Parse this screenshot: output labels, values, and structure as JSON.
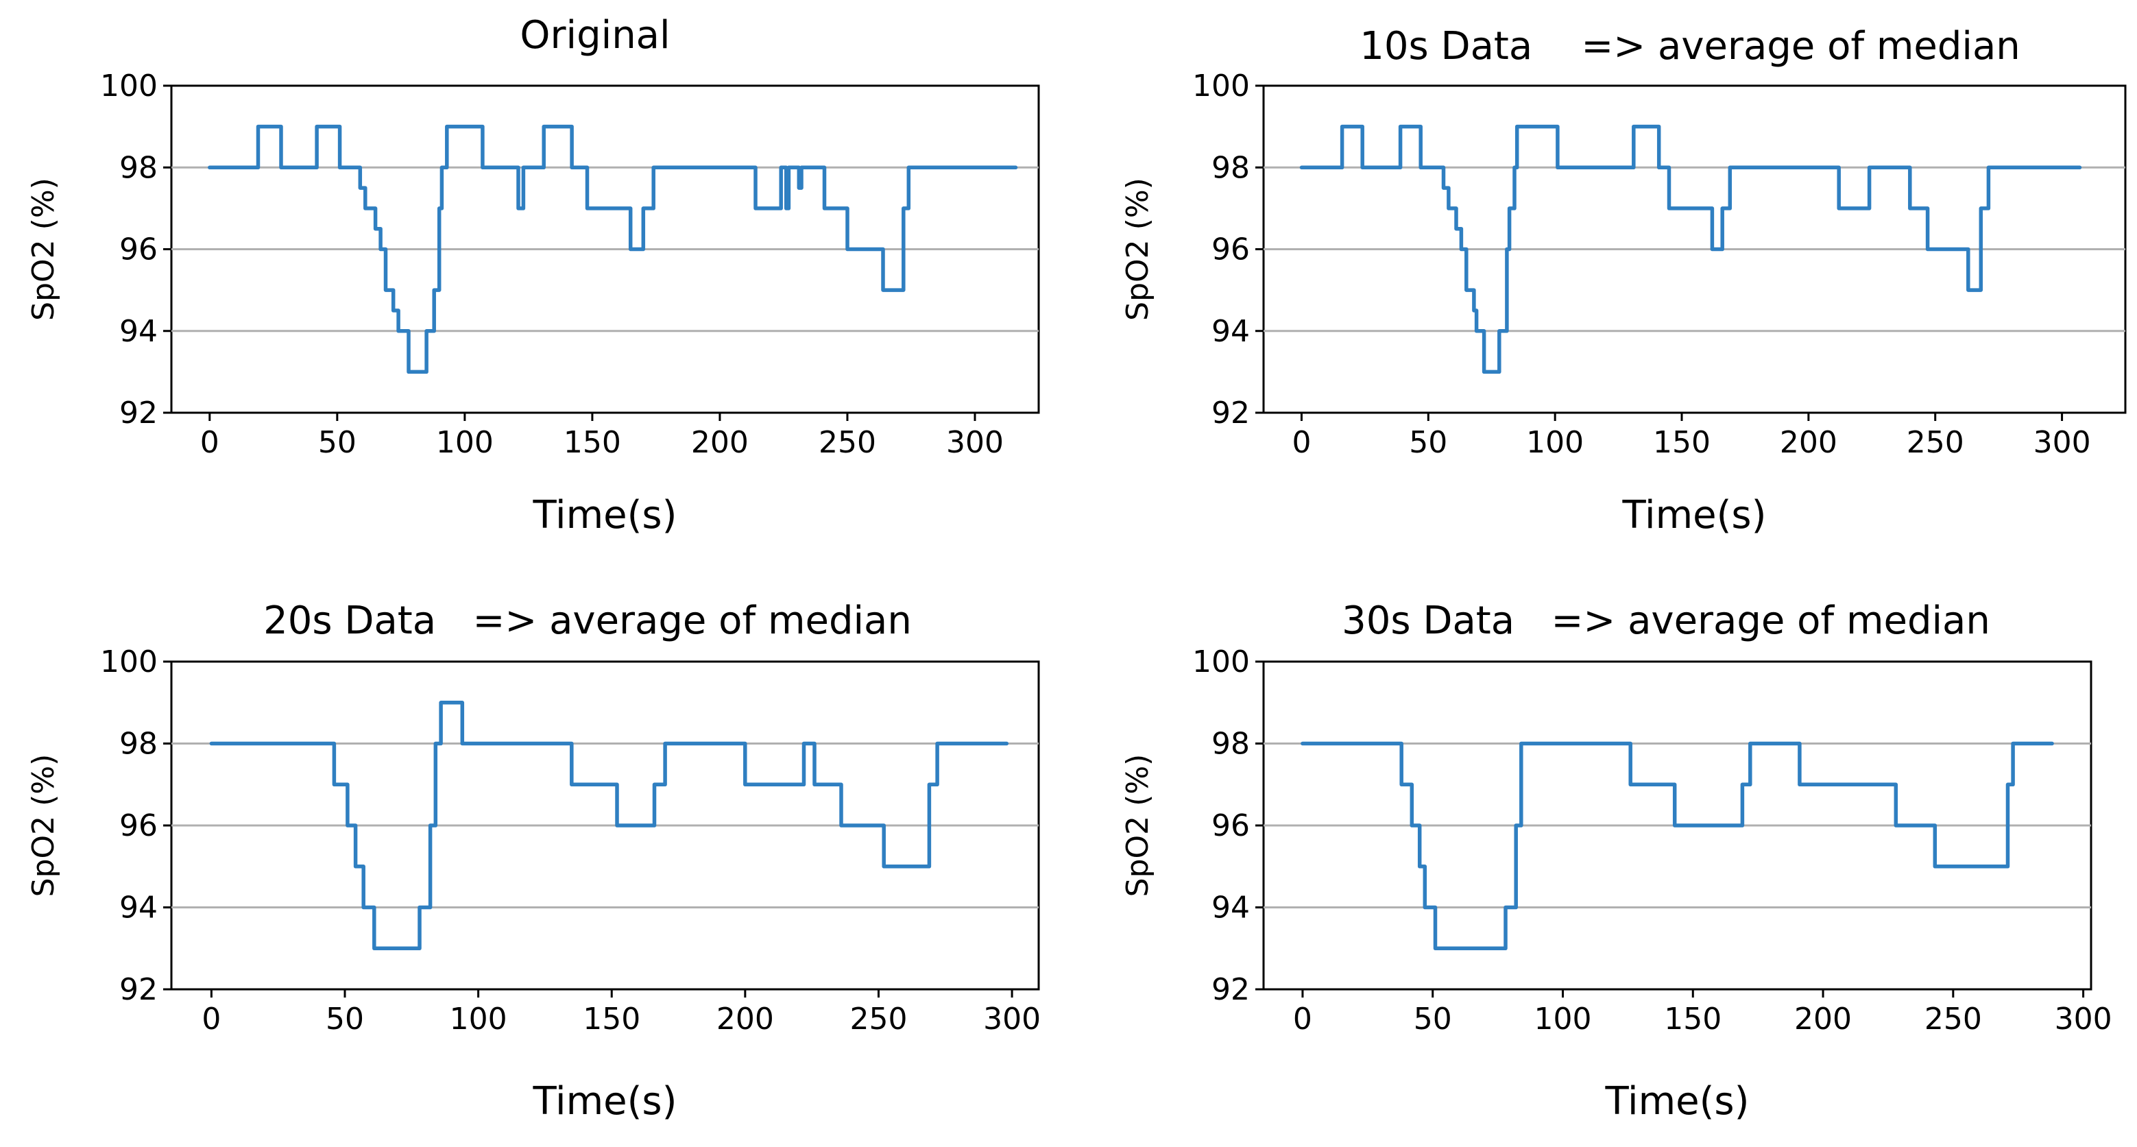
{
  "colors": {
    "series": "#2f7fc1",
    "grid": "#b0b0b0",
    "axis": "#000000",
    "background": "#ffffff"
  },
  "chart_data": [
    {
      "type": "line",
      "title": "Original",
      "xlabel": "Time(s)",
      "ylabel": "SpO2 (%)",
      "xlim": [
        -15,
        325
      ],
      "ylim": [
        92,
        100
      ],
      "xticks": [
        0,
        50,
        100,
        150,
        200,
        250,
        300
      ],
      "yticks": [
        92,
        94,
        96,
        98,
        100
      ],
      "grid": "y",
      "series": [
        {
          "name": "SpO2",
          "steps": [
            [
              0,
              98
            ],
            [
              19,
              99
            ],
            [
              28,
              98
            ],
            [
              42,
              99
            ],
            [
              51,
              98
            ],
            [
              59,
              97.5
            ],
            [
              61,
              97
            ],
            [
              65,
              96.5
            ],
            [
              67,
              96
            ],
            [
              69,
              95
            ],
            [
              72,
              94.5
            ],
            [
              74,
              94
            ],
            [
              78,
              93
            ],
            [
              85,
              94
            ],
            [
              88,
              95
            ],
            [
              90,
              97
            ],
            [
              91,
              98
            ],
            [
              93,
              99
            ],
            [
              107,
              98
            ],
            [
              121,
              97
            ],
            [
              123,
              98
            ],
            [
              131,
              99
            ],
            [
              142,
              98
            ],
            [
              148,
              97
            ],
            [
              165,
              96
            ],
            [
              170,
              97
            ],
            [
              174,
              98
            ],
            [
              214,
              97
            ],
            [
              224,
              98
            ],
            [
              226,
              97
            ],
            [
              227,
              98
            ],
            [
              231,
              97.5
            ],
            [
              232,
              98
            ],
            [
              241,
              97
            ],
            [
              250,
              96
            ],
            [
              264,
              95
            ],
            [
              272,
              97
            ],
            [
              274,
              98
            ],
            [
              316,
              98
            ]
          ]
        }
      ]
    },
    {
      "type": "line",
      "title": "10s Data    => average of median",
      "xlabel": "Time(s)",
      "ylabel": "SpO2 (%)",
      "xlim": [
        -15,
        325
      ],
      "ylim": [
        92,
        100
      ],
      "xticks": [
        0,
        50,
        100,
        150,
        200,
        250,
        300
      ],
      "yticks": [
        92,
        94,
        96,
        98,
        100
      ],
      "grid": "y",
      "series": [
        {
          "name": "SpO2",
          "steps": [
            [
              0,
              98
            ],
            [
              16,
              99
            ],
            [
              24,
              98
            ],
            [
              39,
              99
            ],
            [
              47,
              98
            ],
            [
              56,
              97.5
            ],
            [
              58,
              97
            ],
            [
              61,
              96.5
            ],
            [
              63,
              96
            ],
            [
              65,
              95
            ],
            [
              68,
              94.5
            ],
            [
              69,
              94
            ],
            [
              72,
              93
            ],
            [
              78,
              94
            ],
            [
              81,
              96
            ],
            [
              82,
              97
            ],
            [
              84,
              98
            ],
            [
              85,
              99
            ],
            [
              101,
              98
            ],
            [
              131,
              99
            ],
            [
              141,
              98
            ],
            [
              145,
              97
            ],
            [
              162,
              96
            ],
            [
              166,
              97
            ],
            [
              169,
              98
            ],
            [
              212,
              97
            ],
            [
              224,
              98
            ],
            [
              240,
              97
            ],
            [
              247,
              96
            ],
            [
              263,
              95
            ],
            [
              268,
              97
            ],
            [
              271,
              98
            ],
            [
              307,
              98
            ]
          ]
        }
      ]
    },
    {
      "type": "line",
      "title": "20s Data   => average of median",
      "xlabel": "Time(s)",
      "ylabel": "SpO2 (%)",
      "xlim": [
        -15,
        310
      ],
      "ylim": [
        92,
        100
      ],
      "xticks": [
        0,
        50,
        100,
        150,
        200,
        250,
        300
      ],
      "yticks": [
        92,
        94,
        96,
        98,
        100
      ],
      "grid": "y",
      "series": [
        {
          "name": "SpO2",
          "steps": [
            [
              0,
              98
            ],
            [
              46,
              97
            ],
            [
              51,
              96
            ],
            [
              54,
              95
            ],
            [
              57,
              94
            ],
            [
              61,
              93
            ],
            [
              78,
              94
            ],
            [
              82,
              96
            ],
            [
              84,
              98
            ],
            [
              86,
              99
            ],
            [
              94,
              98
            ],
            [
              135,
              97
            ],
            [
              152,
              96
            ],
            [
              166,
              97
            ],
            [
              170,
              98
            ],
            [
              200,
              97
            ],
            [
              222,
              98
            ],
            [
              226,
              97
            ],
            [
              236,
              96
            ],
            [
              252,
              95
            ],
            [
              269,
              97
            ],
            [
              272,
              98
            ],
            [
              298,
              98
            ]
          ]
        }
      ]
    },
    {
      "type": "line",
      "title": "30s Data   => average of median",
      "xlabel": "Time(s)",
      "ylabel": "SpO2 (%)",
      "xlim": [
        -15,
        303
      ],
      "ylim": [
        92,
        100
      ],
      "xticks": [
        0,
        50,
        100,
        150,
        200,
        250,
        300
      ],
      "yticks": [
        92,
        94,
        96,
        98,
        100
      ],
      "grid": "y",
      "series": [
        {
          "name": "SpO2",
          "steps": [
            [
              0,
              98
            ],
            [
              38,
              97
            ],
            [
              42,
              96
            ],
            [
              45,
              95
            ],
            [
              47,
              94
            ],
            [
              51,
              93
            ],
            [
              78,
              94
            ],
            [
              82,
              96
            ],
            [
              84,
              98
            ],
            [
              126,
              97
            ],
            [
              143,
              96
            ],
            [
              169,
              97
            ],
            [
              172,
              98
            ],
            [
              191,
              97
            ],
            [
              228,
              96
            ],
            [
              243,
              95
            ],
            [
              271,
              97
            ],
            [
              273,
              98
            ],
            [
              288,
              98
            ]
          ]
        }
      ]
    }
  ]
}
